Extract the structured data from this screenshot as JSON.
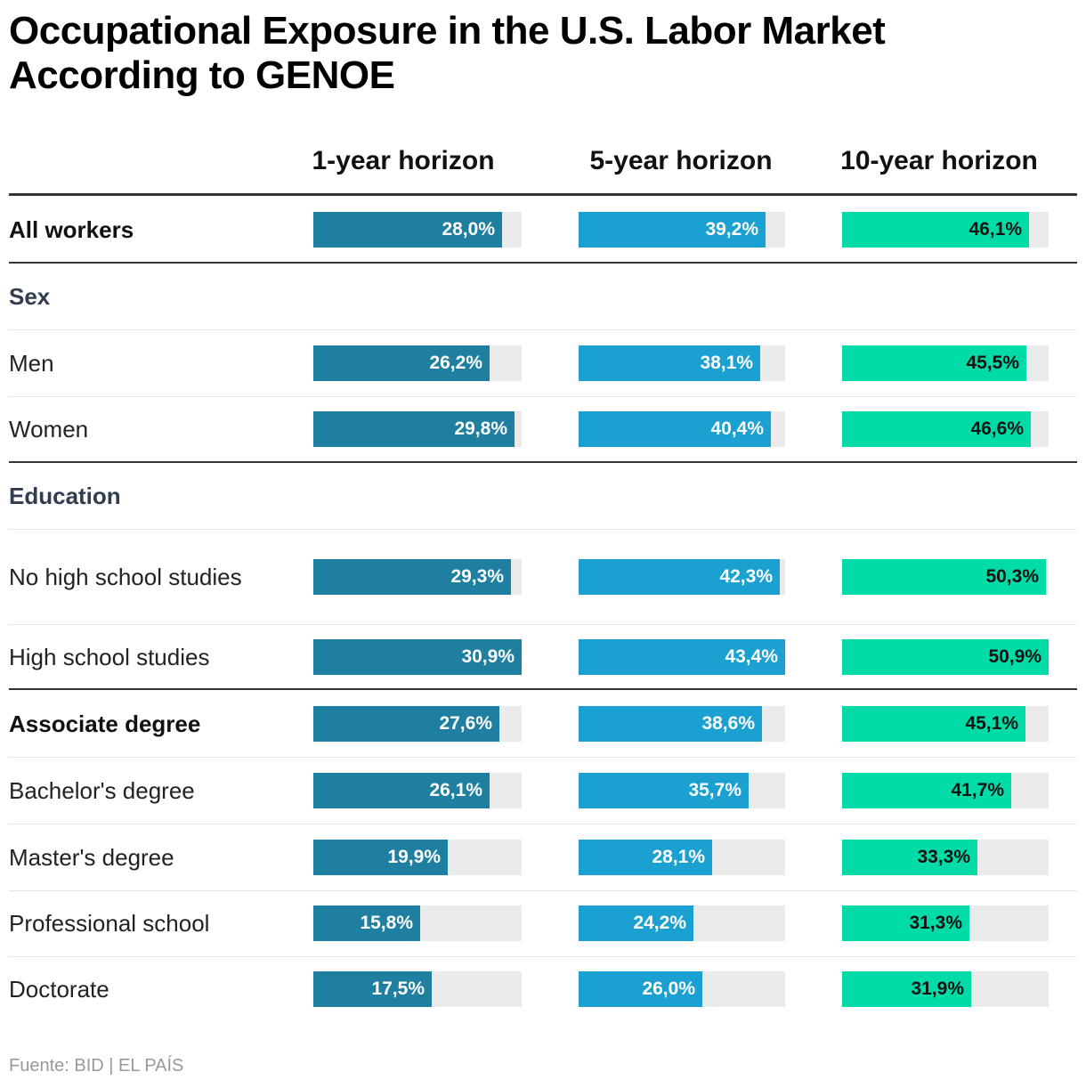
{
  "title": "Occupational Exposure in the U.S. Labor Market According to GENOE",
  "source": "Fuente: BID | EL PAÍS",
  "colors": {
    "h1": "#1f7fa0",
    "h5": "#1ba1d1",
    "h10": "#00dba8",
    "track": "#ebebeb",
    "label_light": "#ffffff",
    "label_dark": "#111111"
  },
  "chart_data": {
    "type": "bar",
    "value_format": "decimal-comma-percent",
    "scale_max_percent": 30.9,
    "columns": [
      "1-year horizon",
      "5-year horizon",
      "10-year horizon"
    ],
    "rows": [
      {
        "label": "All workers",
        "kind": "total",
        "values": [
          28.0,
          39.2,
          46.1
        ],
        "display": [
          "28,0%",
          "39,2%",
          "46,1%"
        ]
      },
      {
        "label": "Sex",
        "kind": "group"
      },
      {
        "label": "Men",
        "kind": "item",
        "values": [
          26.2,
          38.1,
          45.5
        ],
        "display": [
          "26,2%",
          "38,1%",
          "45,5%"
        ]
      },
      {
        "label": "Women",
        "kind": "item",
        "values": [
          29.8,
          40.4,
          46.6
        ],
        "display": [
          "29,8%",
          "40,4%",
          "46,6%"
        ]
      },
      {
        "label": "Education",
        "kind": "group"
      },
      {
        "label": "No high school studies",
        "kind": "item",
        "values": [
          29.3,
          42.3,
          50.3
        ],
        "display": [
          "29,3%",
          "42,3%",
          "50,3%"
        ]
      },
      {
        "label": "High school studies",
        "kind": "item",
        "values": [
          30.9,
          43.4,
          50.9
        ],
        "display": [
          "30,9%",
          "43,4%",
          "50,9%"
        ]
      },
      {
        "label": "Associate degree",
        "kind": "total",
        "values": [
          27.6,
          38.6,
          45.1
        ],
        "display": [
          "27,6%",
          "38,6%",
          "45,1%"
        ]
      },
      {
        "label": "Bachelor's degree",
        "kind": "item",
        "values": [
          26.1,
          35.7,
          41.7
        ],
        "display": [
          "26,1%",
          "35,7%",
          "41,7%"
        ]
      },
      {
        "label": "Master's degree",
        "kind": "item",
        "values": [
          19.9,
          28.1,
          33.3
        ],
        "display": [
          "19,9%",
          "28,1%",
          "33,3%"
        ]
      },
      {
        "label": "Professional school",
        "kind": "item",
        "values": [
          15.8,
          24.2,
          31.3
        ],
        "display": [
          "15,8%",
          "24,2%",
          "31,3%"
        ]
      },
      {
        "label": "Doctorate",
        "kind": "item",
        "values": [
          17.5,
          26.0,
          31.9
        ],
        "display": [
          "17,5%",
          "26,0%",
          "31,9%"
        ]
      }
    ]
  }
}
